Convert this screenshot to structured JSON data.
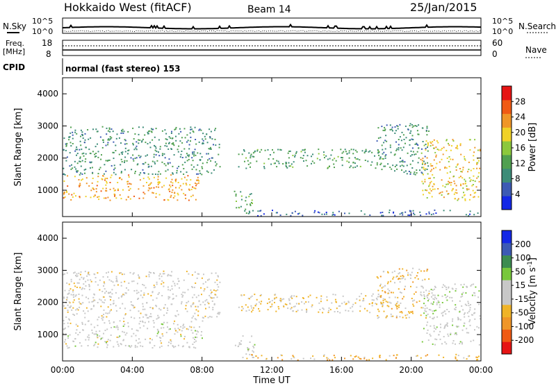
{
  "header": {
    "title": "Hokkaido West (fitACF)",
    "beam": "Beam 14",
    "date": "25/Jan/2015"
  },
  "status_panels": {
    "nsky_label": "N.Sky",
    "nsearch_label": "N.Search",
    "noise_ticks": [
      "10^5",
      "10^0"
    ],
    "freq_label_1": "Freq.",
    "freq_label_2": "[MHz]",
    "freq_ticks": [
      "18",
      "8"
    ],
    "nave_label": "Nave",
    "nave_ticks": [
      "60",
      "0"
    ],
    "cpid_label": "CPID",
    "cpid_text": "normal (fast stereo) 153"
  },
  "x_axis": {
    "label": "Time UT",
    "ticks": [
      "00:00",
      "04:00",
      "08:00",
      "12:00",
      "16:00",
      "20:00",
      "00:00"
    ]
  },
  "colors": {
    "power_scale": [
      "#1428e6",
      "#3c5ab4",
      "#3c8c78",
      "#50a050",
      "#8cc83c",
      "#f0d228",
      "#f09628",
      "#f05a14",
      "#e61414"
    ],
    "velocity_scale": [
      "#e61414",
      "#f05a14",
      "#f09628",
      "#f0b428",
      "#c8c8c8",
      "#c8c8c8",
      "#78c83c",
      "#3c8c50",
      "#3c5ab4",
      "#1428e6"
    ]
  },
  "chart_data": [
    {
      "type": "heatmap",
      "title": "",
      "xlabel": "",
      "ylabel": "Slant Range [km]",
      "xlim": [
        0,
        24
      ],
      "ylim": [
        180,
        4500
      ],
      "y_ticks": [
        "1000",
        "2000",
        "3000",
        "4000"
      ],
      "colorbar": {
        "label": "Power [dB]",
        "min": 0,
        "max": 32,
        "ticks": [
          "4",
          "8",
          "12",
          "16",
          "20",
          "24",
          "28"
        ]
      },
      "scatter_regions": [
        {
          "t0": 0.0,
          "t1": 7.8,
          "r0": 700,
          "r1": 1500,
          "value": 22
        },
        {
          "t0": 0.0,
          "t1": 9.0,
          "r0": 1500,
          "r1": 3000,
          "value": 10
        },
        {
          "t0": 9.8,
          "t1": 11.0,
          "r0": 300,
          "r1": 1000,
          "value": 12
        },
        {
          "t0": 10.0,
          "t1": 18.5,
          "r0": 1700,
          "r1": 2300,
          "value": 11
        },
        {
          "t0": 18.0,
          "t1": 21.0,
          "r0": 1500,
          "r1": 3100,
          "value": 10
        },
        {
          "t0": 20.5,
          "t1": 24.0,
          "r0": 700,
          "r1": 2600,
          "value": 20
        },
        {
          "t0": 10.5,
          "t1": 24.0,
          "r0": 200,
          "r1": 400,
          "value": 6
        }
      ]
    },
    {
      "type": "heatmap",
      "title": "",
      "xlabel": "Time UT",
      "ylabel": "Slant Range [km]",
      "xlim": [
        0,
        24
      ],
      "ylim": [
        180,
        4500
      ],
      "y_ticks": [
        "1000",
        "2000",
        "3000",
        "4000"
      ],
      "colorbar": {
        "label": "Velocity [m s^-1]",
        "min": -250,
        "max": 250,
        "ticks": [
          "-200",
          "-100",
          "-50",
          "-15",
          "15",
          "50",
          "100",
          "200"
        ]
      },
      "scatter_regions": [
        {
          "t0": 0.0,
          "t1": 8.0,
          "r0": 600,
          "r1": 1500,
          "value": 0
        },
        {
          "t0": 0.0,
          "t1": 9.0,
          "r0": 1500,
          "r1": 3000,
          "value": -10
        },
        {
          "t0": 9.8,
          "t1": 11.0,
          "r0": 300,
          "r1": 1000,
          "value": 5
        },
        {
          "t0": 10.0,
          "t1": 18.5,
          "r0": 1700,
          "r1": 2300,
          "value": -40
        },
        {
          "t0": 18.0,
          "t1": 21.0,
          "r0": 1500,
          "r1": 3100,
          "value": -60
        },
        {
          "t0": 20.5,
          "t1": 24.0,
          "r0": 700,
          "r1": 2600,
          "value": 10
        },
        {
          "t0": 10.5,
          "t1": 24.0,
          "r0": 200,
          "r1": 400,
          "value": -80
        }
      ]
    }
  ]
}
